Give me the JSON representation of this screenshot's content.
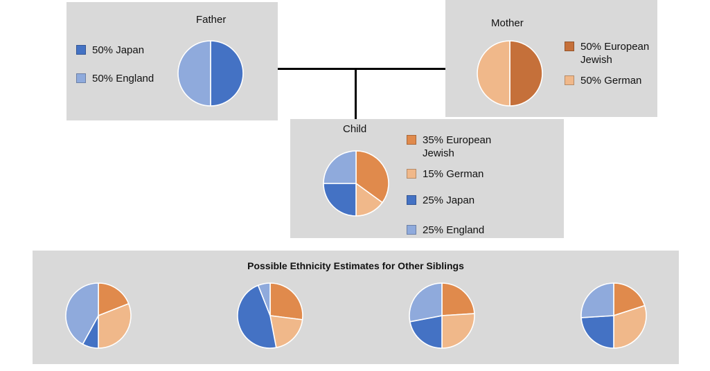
{
  "colors": {
    "japan": "#4472c4",
    "england": "#8faadc",
    "european_jewish": "#e08a4c",
    "german": "#f0b88a",
    "mother_jewish": "#c5703a",
    "panel": "#d9d9d9"
  },
  "father": {
    "title": "Father",
    "legend": [
      "50% Japan",
      "50% England"
    ]
  },
  "mother": {
    "title": "Mother",
    "legend": [
      "50% European Jewish",
      "50% German"
    ]
  },
  "child": {
    "title": "Child",
    "legend": [
      "35% European Jewish",
      "15% German",
      "25% Japan",
      "25% England"
    ]
  },
  "siblings": {
    "title": "Possible Ethnicity Estimates for Other Siblings"
  },
  "chart_data": [
    {
      "type": "pie",
      "title": "Father",
      "labels": [
        "Japan",
        "England"
      ],
      "values": [
        50,
        50
      ],
      "colors": [
        "#4472c4",
        "#8faadc"
      ],
      "legend": [
        "50% Japan",
        "50% England"
      ],
      "legend_position": "left"
    },
    {
      "type": "pie",
      "title": "Mother",
      "labels": [
        "European Jewish",
        "German"
      ],
      "values": [
        50,
        50
      ],
      "colors": [
        "#c5703a",
        "#f0b88a"
      ],
      "legend": [
        "50% European Jewish",
        "50% German"
      ],
      "legend_position": "right"
    },
    {
      "type": "pie",
      "title": "Child",
      "labels": [
        "European Jewish",
        "German",
        "Japan",
        "England"
      ],
      "values": [
        35,
        15,
        25,
        25
      ],
      "colors": [
        "#e08a4c",
        "#f0b88a",
        "#4472c4",
        "#8faadc"
      ],
      "legend": [
        "35% European Jewish",
        "15% German",
        "25% Japan",
        "25% England"
      ],
      "legend_position": "right"
    },
    {
      "type": "pie",
      "title": "",
      "labels": [
        "European Jewish",
        "German",
        "Japan",
        "England"
      ],
      "values": [
        19,
        31,
        8,
        42
      ],
      "colors": [
        "#e08a4c",
        "#f0b88a",
        "#4472c4",
        "#8faadc"
      ]
    },
    {
      "type": "pie",
      "title": "",
      "labels": [
        "European Jewish",
        "German",
        "Japan",
        "England"
      ],
      "values": [
        27,
        20,
        47,
        6
      ],
      "colors": [
        "#e08a4c",
        "#f0b88a",
        "#4472c4",
        "#8faadc"
      ]
    },
    {
      "type": "pie",
      "title": "",
      "labels": [
        "European Jewish",
        "German",
        "Japan",
        "England"
      ],
      "values": [
        24,
        26,
        22,
        28
      ],
      "colors": [
        "#e08a4c",
        "#f0b88a",
        "#4472c4",
        "#8faadc"
      ]
    },
    {
      "type": "pie",
      "title": "",
      "labels": [
        "European Jewish",
        "German",
        "Japan",
        "England"
      ],
      "values": [
        20,
        30,
        24,
        26
      ],
      "colors": [
        "#e08a4c",
        "#f0b88a",
        "#4472c4",
        "#8faadc"
      ]
    }
  ]
}
